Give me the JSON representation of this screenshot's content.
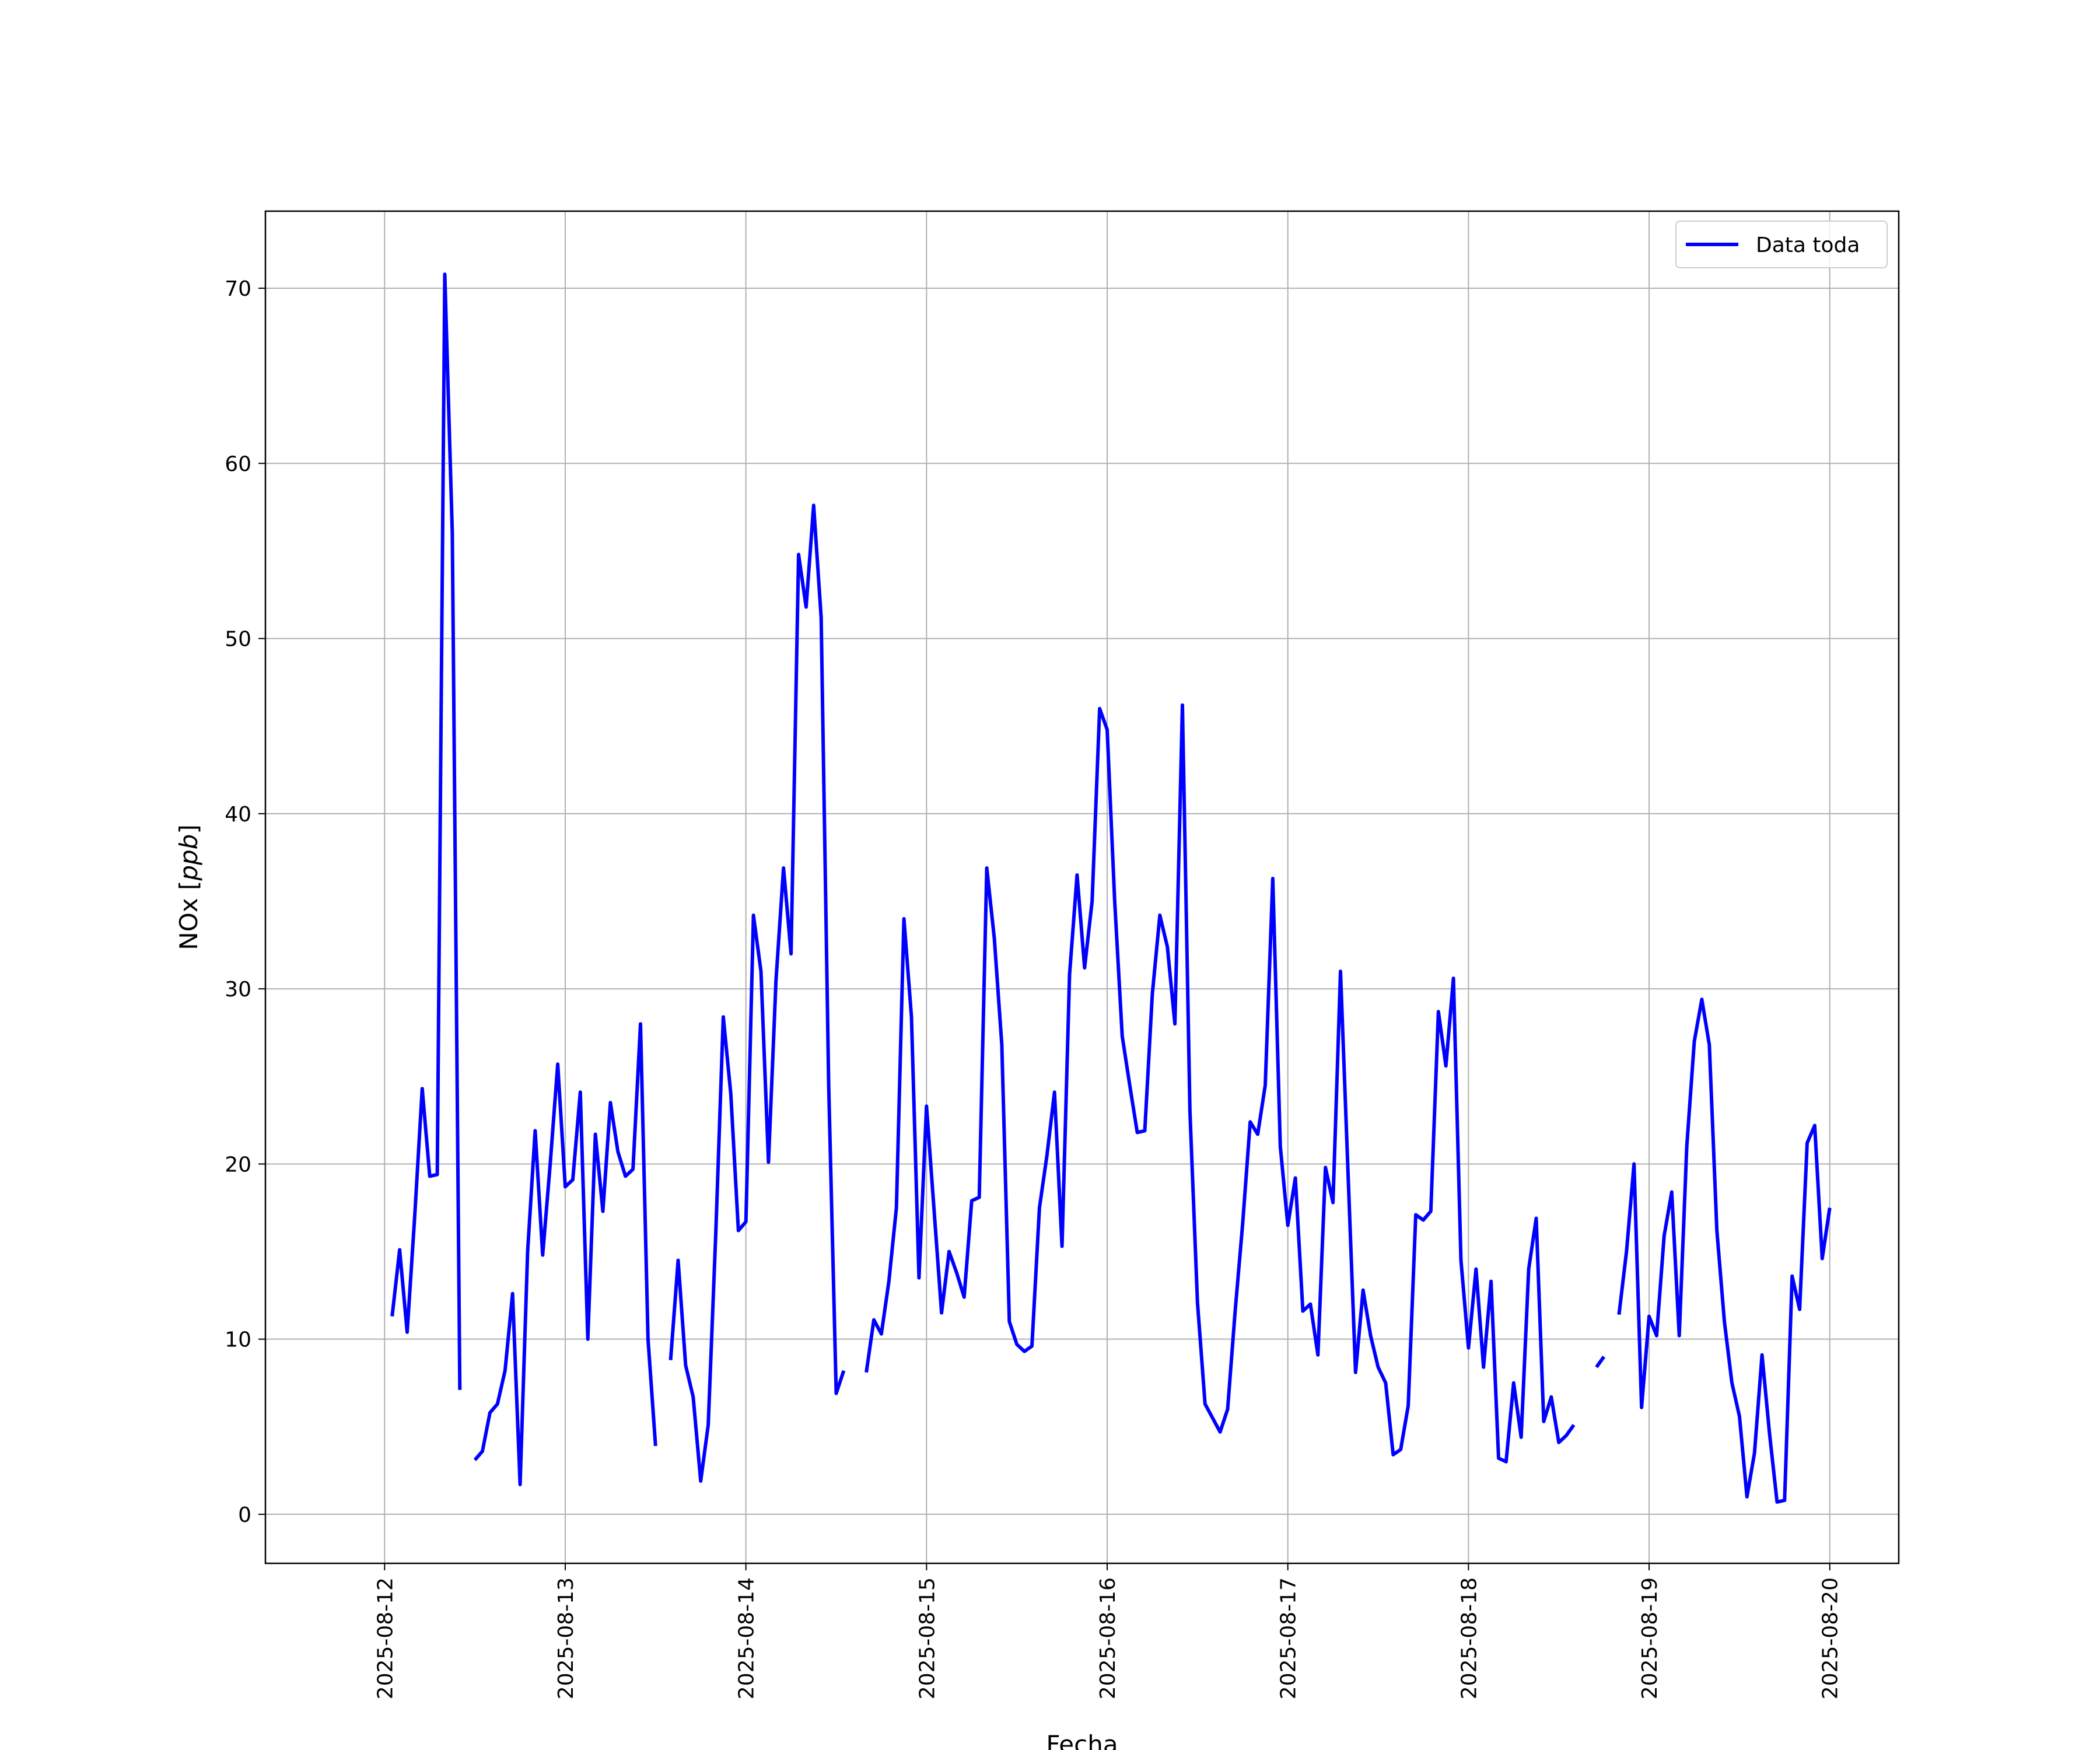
{
  "chart_data": {
    "type": "line",
    "title": "",
    "xlabel": "Fecha",
    "ylabel": "NOx [ppb]",
    "ylabel_parts": {
      "text": "NOx [",
      "unit": "ppb",
      "close": "]"
    },
    "x_tick_labels": [
      "2025-08-12",
      "2025-08-13",
      "2025-08-14",
      "2025-08-15",
      "2025-08-16",
      "2025-08-17",
      "2025-08-18",
      "2025-08-19",
      "2025-08-20"
    ],
    "y_tick_labels": [
      "0",
      "10",
      "20",
      "30",
      "40",
      "50",
      "60",
      "70"
    ],
    "xlim": [
      "2025-08-11T08:10",
      "2025-08-20T09:10"
    ],
    "ylim": [
      -2.8,
      74.4
    ],
    "grid": true,
    "legend_position": "top-right",
    "series": [
      {
        "name": "Data toda",
        "color": "#0000ff",
        "points": [
          [
            "2025-08-12T01:00",
            11.3
          ],
          [
            "2025-08-12T02:00",
            15.1
          ],
          [
            "2025-08-12T03:00",
            10.4
          ],
          [
            "2025-08-12T04:00",
            17.0
          ],
          [
            "2025-08-12T05:00",
            24.3
          ],
          [
            "2025-08-12T06:00",
            19.3
          ],
          [
            "2025-08-12T07:00",
            19.4
          ],
          [
            "2025-08-12T08:00",
            70.8
          ],
          [
            "2025-08-12T09:00",
            56.0
          ],
          [
            "2025-08-12T10:00",
            7.1
          ],
          [
            "2025-08-12T11:00",
            null
          ],
          [
            "2025-08-12T12:00",
            3.1
          ],
          [
            "2025-08-12T13:00",
            3.6
          ],
          [
            "2025-08-12T14:00",
            5.8
          ],
          [
            "2025-08-12T15:00",
            6.3
          ],
          [
            "2025-08-12T16:00",
            8.2
          ],
          [
            "2025-08-12T17:00",
            12.6
          ],
          [
            "2025-08-12T18:00",
            1.7
          ],
          [
            "2025-08-12T19:00",
            15.0
          ],
          [
            "2025-08-12T20:00",
            21.9
          ],
          [
            "2025-08-12T21:00",
            14.8
          ],
          [
            "2025-08-12T22:00",
            20.0
          ],
          [
            "2025-08-12T23:00",
            25.7
          ],
          [
            "2025-08-13T00:00",
            18.7
          ],
          [
            "2025-08-13T01:00",
            19.1
          ],
          [
            "2025-08-13T02:00",
            24.1
          ],
          [
            "2025-08-13T03:00",
            10.0
          ],
          [
            "2025-08-13T04:00",
            21.7
          ],
          [
            "2025-08-13T05:00",
            17.3
          ],
          [
            "2025-08-13T06:00",
            23.5
          ],
          [
            "2025-08-13T07:00",
            20.7
          ],
          [
            "2025-08-13T08:00",
            19.3
          ],
          [
            "2025-08-13T09:00",
            19.7
          ],
          [
            "2025-08-13T10:00",
            28.0
          ],
          [
            "2025-08-13T11:00",
            10.0
          ],
          [
            "2025-08-13T12:00",
            3.9
          ],
          [
            "2025-08-13T13:00",
            null
          ],
          [
            "2025-08-13T14:00",
            8.8
          ],
          [
            "2025-08-13T15:00",
            14.5
          ],
          [
            "2025-08-13T16:00",
            8.5
          ],
          [
            "2025-08-13T17:00",
            6.7
          ],
          [
            "2025-08-13T18:00",
            1.9
          ],
          [
            "2025-08-13T19:00",
            5.1
          ],
          [
            "2025-08-13T20:00",
            16.0
          ],
          [
            "2025-08-13T21:00",
            28.4
          ],
          [
            "2025-08-13T22:00",
            24.0
          ],
          [
            "2025-08-13T23:00",
            16.2
          ],
          [
            "2025-08-14T00:00",
            16.7
          ],
          [
            "2025-08-14T01:00",
            34.2
          ],
          [
            "2025-08-14T02:00",
            31.0
          ],
          [
            "2025-08-14T03:00",
            20.1
          ],
          [
            "2025-08-14T04:00",
            30.5
          ],
          [
            "2025-08-14T05:00",
            36.9
          ],
          [
            "2025-08-14T06:00",
            32.0
          ],
          [
            "2025-08-14T07:00",
            54.8
          ],
          [
            "2025-08-14T08:00",
            51.8
          ],
          [
            "2025-08-14T09:00",
            57.6
          ],
          [
            "2025-08-14T10:00",
            51.2
          ],
          [
            "2025-08-14T11:00",
            24.5
          ],
          [
            "2025-08-14T12:00",
            6.9
          ],
          [
            "2025-08-14T13:00",
            8.2
          ],
          [
            "2025-08-14T14:00",
            null
          ],
          [
            "2025-08-14T15:00",
            null
          ],
          [
            "2025-08-14T16:00",
            8.1
          ],
          [
            "2025-08-14T17:00",
            11.1
          ],
          [
            "2025-08-14T18:00",
            10.3
          ],
          [
            "2025-08-14T19:00",
            13.3
          ],
          [
            "2025-08-14T20:00",
            17.5
          ],
          [
            "2025-08-14T21:00",
            34.0
          ],
          [
            "2025-08-14T22:00",
            28.4
          ],
          [
            "2025-08-14T23:00",
            13.5
          ],
          [
            "2025-08-15T00:00",
            23.3
          ],
          [
            "2025-08-15T01:00",
            17.4
          ],
          [
            "2025-08-15T02:00",
            11.5
          ],
          [
            "2025-08-15T03:00",
            15.0
          ],
          [
            "2025-08-15T04:00",
            13.8
          ],
          [
            "2025-08-15T05:00",
            12.4
          ],
          [
            "2025-08-15T06:00",
            17.9
          ],
          [
            "2025-08-15T07:00",
            18.1
          ],
          [
            "2025-08-15T08:00",
            36.9
          ],
          [
            "2025-08-15T09:00",
            32.9
          ],
          [
            "2025-08-15T10:00",
            26.8
          ],
          [
            "2025-08-15T11:00",
            11.0
          ],
          [
            "2025-08-15T12:00",
            9.7
          ],
          [
            "2025-08-15T13:00",
            9.3
          ],
          [
            "2025-08-15T14:00",
            9.6
          ],
          [
            "2025-08-15T15:00",
            17.5
          ],
          [
            "2025-08-15T16:00",
            20.5
          ],
          [
            "2025-08-15T17:00",
            24.1
          ],
          [
            "2025-08-15T18:00",
            15.3
          ],
          [
            "2025-08-15T19:00",
            30.8
          ],
          [
            "2025-08-15T20:00",
            36.5
          ],
          [
            "2025-08-15T21:00",
            31.2
          ],
          [
            "2025-08-15T22:00",
            35.0
          ],
          [
            "2025-08-15T23:00",
            46.0
          ],
          [
            "2025-08-16T00:00",
            44.8
          ],
          [
            "2025-08-16T01:00",
            35.0
          ],
          [
            "2025-08-16T02:00",
            27.3
          ],
          [
            "2025-08-16T03:00",
            24.5
          ],
          [
            "2025-08-16T04:00",
            21.8
          ],
          [
            "2025-08-16T05:00",
            21.9
          ],
          [
            "2025-08-16T06:00",
            29.7
          ],
          [
            "2025-08-16T07:00",
            34.2
          ],
          [
            "2025-08-16T08:00",
            32.4
          ],
          [
            "2025-08-16T09:00",
            28.0
          ],
          [
            "2025-08-16T10:00",
            46.2
          ],
          [
            "2025-08-16T11:00",
            23.0
          ],
          [
            "2025-08-16T12:00",
            12.1
          ],
          [
            "2025-08-16T13:00",
            6.3
          ],
          [
            "2025-08-16T14:00",
            5.5
          ],
          [
            "2025-08-16T15:00",
            4.7
          ],
          [
            "2025-08-16T16:00",
            6.0
          ],
          [
            "2025-08-16T17:00",
            11.6
          ],
          [
            "2025-08-16T18:00",
            16.6
          ],
          [
            "2025-08-16T19:00",
            22.4
          ],
          [
            "2025-08-16T20:00",
            21.7
          ],
          [
            "2025-08-16T21:00",
            24.5
          ],
          [
            "2025-08-16T22:00",
            36.3
          ],
          [
            "2025-08-16T23:00",
            21.0
          ],
          [
            "2025-08-17T00:00",
            16.5
          ],
          [
            "2025-08-17T01:00",
            19.2
          ],
          [
            "2025-08-17T02:00",
            11.6
          ],
          [
            "2025-08-17T03:00",
            12.0
          ],
          [
            "2025-08-17T04:00",
            9.1
          ],
          [
            "2025-08-17T05:00",
            19.8
          ],
          [
            "2025-08-17T06:00",
            17.8
          ],
          [
            "2025-08-17T07:00",
            31.0
          ],
          [
            "2025-08-17T08:00",
            19.5
          ],
          [
            "2025-08-17T09:00",
            8.1
          ],
          [
            "2025-08-17T10:00",
            12.8
          ],
          [
            "2025-08-17T11:00",
            10.2
          ],
          [
            "2025-08-17T12:00",
            8.4
          ],
          [
            "2025-08-17T13:00",
            7.5
          ],
          [
            "2025-08-17T14:00",
            3.4
          ],
          [
            "2025-08-17T15:00",
            3.7
          ],
          [
            "2025-08-17T16:00",
            6.2
          ],
          [
            "2025-08-17T17:00",
            17.1
          ],
          [
            "2025-08-17T18:00",
            16.8
          ],
          [
            "2025-08-17T19:00",
            17.3
          ],
          [
            "2025-08-17T20:00",
            28.7
          ],
          [
            "2025-08-17T21:00",
            25.6
          ],
          [
            "2025-08-17T22:00",
            30.6
          ],
          [
            "2025-08-17T23:00",
            14.5
          ],
          [
            "2025-08-18T00:00",
            9.5
          ],
          [
            "2025-08-18T01:00",
            14.0
          ],
          [
            "2025-08-18T02:00",
            8.4
          ],
          [
            "2025-08-18T03:00",
            13.3
          ],
          [
            "2025-08-18T04:00",
            3.2
          ],
          [
            "2025-08-18T05:00",
            3.0
          ],
          [
            "2025-08-18T06:00",
            7.5
          ],
          [
            "2025-08-18T07:00",
            4.4
          ],
          [
            "2025-08-18T08:00",
            14.0
          ],
          [
            "2025-08-18T09:00",
            16.9
          ],
          [
            "2025-08-18T10:00",
            5.3
          ],
          [
            "2025-08-18T11:00",
            6.7
          ],
          [
            "2025-08-18T12:00",
            4.1
          ],
          [
            "2025-08-18T13:00",
            4.5
          ],
          [
            "2025-08-18T14:00",
            5.1
          ],
          [
            "2025-08-18T15:00",
            null
          ],
          [
            "2025-08-18T16:00",
            null
          ],
          [
            "2025-08-18T17:00",
            8.4
          ],
          [
            "2025-08-18T18:00",
            9.0
          ],
          [
            "2025-08-18T19:00",
            null
          ],
          [
            "2025-08-18T20:00",
            11.4
          ],
          [
            "2025-08-18T21:00",
            15.0
          ],
          [
            "2025-08-18T22:00",
            20.0
          ],
          [
            "2025-08-18T23:00",
            6.1
          ],
          [
            "2025-08-19T00:00",
            11.3
          ],
          [
            "2025-08-19T01:00",
            10.2
          ],
          [
            "2025-08-19T02:00",
            15.9
          ],
          [
            "2025-08-19T03:00",
            18.4
          ],
          [
            "2025-08-19T04:00",
            10.2
          ],
          [
            "2025-08-19T05:00",
            21.0
          ],
          [
            "2025-08-19T06:00",
            27.0
          ],
          [
            "2025-08-19T07:00",
            29.4
          ],
          [
            "2025-08-19T08:00",
            26.8
          ],
          [
            "2025-08-19T09:00",
            16.2
          ],
          [
            "2025-08-19T10:00",
            11.0
          ],
          [
            "2025-08-19T11:00",
            7.5
          ],
          [
            "2025-08-19T12:00",
            5.6
          ],
          [
            "2025-08-19T13:00",
            1.0
          ],
          [
            "2025-08-19T14:00",
            3.5
          ],
          [
            "2025-08-19T15:00",
            9.1
          ],
          [
            "2025-08-19T16:00",
            4.6
          ],
          [
            "2025-08-19T17:00",
            0.7
          ],
          [
            "2025-08-19T18:00",
            0.8
          ],
          [
            "2025-08-19T19:00",
            13.6
          ],
          [
            "2025-08-19T20:00",
            11.7
          ],
          [
            "2025-08-19T21:00",
            21.2
          ],
          [
            "2025-08-19T22:00",
            22.2
          ],
          [
            "2025-08-19T23:00",
            14.6
          ],
          [
            "2025-08-20T00:00",
            17.5
          ]
        ]
      }
    ]
  }
}
